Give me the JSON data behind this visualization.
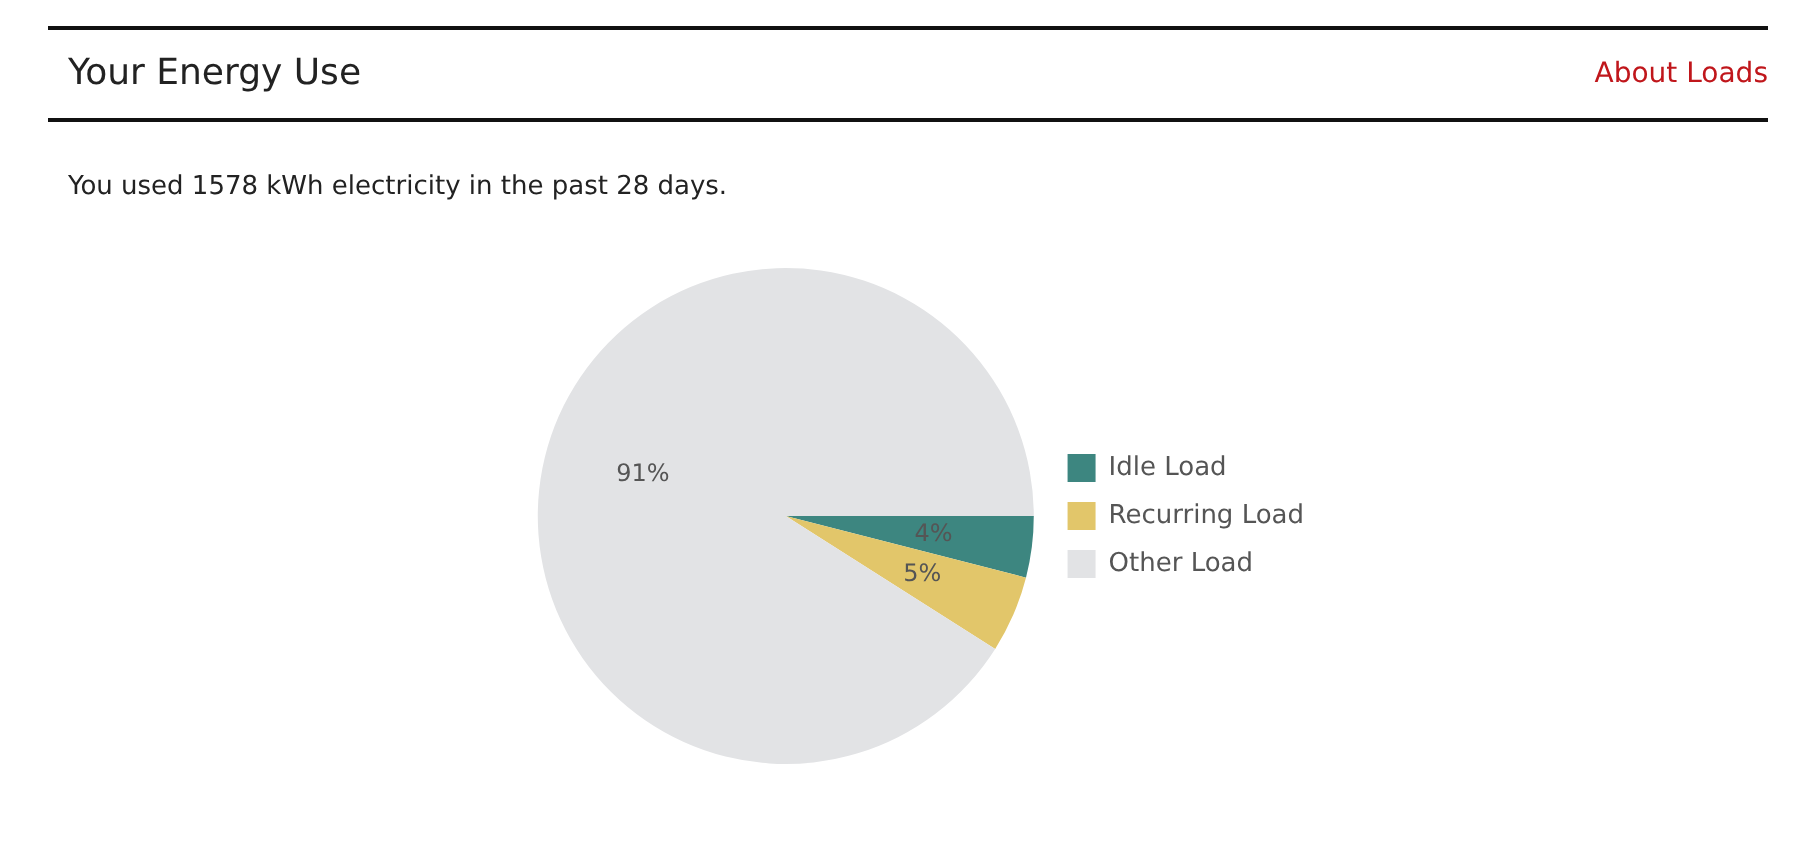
{
  "chart_data": {
    "type": "pie",
    "title": "Your Energy Use",
    "subtitle": "You used 1578 kWh electricity in the past 28 days.",
    "annotations": [
      "About Loads"
    ],
    "categories": [
      "Idle Load",
      "Recurring Load",
      "Other Load"
    ],
    "values": [
      4,
      5,
      91
    ],
    "value_labels": [
      "4%",
      "5%",
      "91%"
    ],
    "colors": [
      "#3d8680",
      "#e2c66a",
      "#e2e3e5"
    ],
    "legend": "right"
  }
}
